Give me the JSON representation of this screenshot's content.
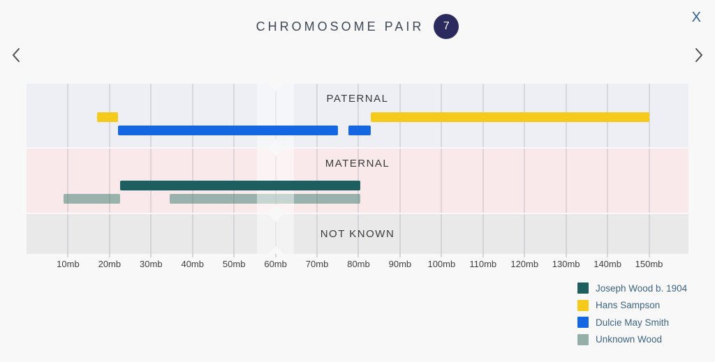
{
  "header": {
    "title": "CHROMOSOME PAIR",
    "pair_number": "7"
  },
  "controls": {
    "close_label": "X",
    "close_icon": "x-close-icon",
    "prev_icon": "chevron-left-icon",
    "next_icon": "chevron-right-icon"
  },
  "colors": {
    "page_bg": "#f8f8f9",
    "badge_bg": "#2b2a5e",
    "badge_text": "#ffffff",
    "title_text": "#3e4756",
    "close_text": "#2c6291",
    "legend_text": "#3c6480"
  },
  "chart_data": {
    "type": "segment-map",
    "title": "Chromosome pair 7 painted DNA segments",
    "x_unit": "mb",
    "x_domain": [
      0,
      159.5
    ],
    "x_tick_values": [
      10,
      20,
      30,
      40,
      50,
      60,
      70,
      80,
      90,
      100,
      110,
      120,
      130,
      140,
      150
    ],
    "x_tick_labels": [
      "10mb",
      "20mb",
      "30mb",
      "40mb",
      "50mb",
      "60mb",
      "70mb",
      "80mb",
      "90mb",
      "100mb",
      "110mb",
      "120mb",
      "130mb",
      "140mb",
      "150mb"
    ],
    "grid": true,
    "centromere_mb": 60,
    "centromere_band_mb": [
      55.5,
      64.5
    ],
    "tracks": [
      {
        "kind": "paternal",
        "label": "PATERNAL",
        "bg": "#edeff4",
        "rows": [
          {
            "person": "Hans Sampson",
            "color": "#f5ca1a",
            "opaque": true,
            "segments_mb": [
              [
                17,
                22
              ],
              [
                83,
                150
              ]
            ]
          },
          {
            "person": "Dulcie May Smith",
            "color": "#1566e2",
            "opaque": true,
            "segments_mb": [
              [
                22,
                75
              ],
              [
                77.5,
                83
              ]
            ]
          }
        ]
      },
      {
        "kind": "maternal",
        "label": "MATERNAL",
        "bg": "#f9e9eb",
        "rows": [
          {
            "person": "Joseph Wood b. 1904",
            "color": "#1d5e60",
            "opaque": true,
            "segments_mb": [
              [
                22.5,
                80.5
              ]
            ]
          },
          {
            "person": "Unknown Wood",
            "color": "#93afa8",
            "opaque": false,
            "segments_mb": [
              [
                9,
                22.5
              ],
              [
                34.5,
                80.5
              ]
            ]
          }
        ]
      },
      {
        "kind": "not_known",
        "label": "NOT KNOWN",
        "bg": "#e9e9ea",
        "rows": []
      }
    ],
    "legend_position": "bottom-right",
    "legend": [
      {
        "label": "Joseph Wood b. 1904",
        "color": "#1d5e60"
      },
      {
        "label": "Hans Sampson",
        "color": "#f5ca1a"
      },
      {
        "label": "Dulcie May Smith",
        "color": "#1566e2"
      },
      {
        "label": "Unknown Wood",
        "color": "#93afa8"
      }
    ]
  }
}
